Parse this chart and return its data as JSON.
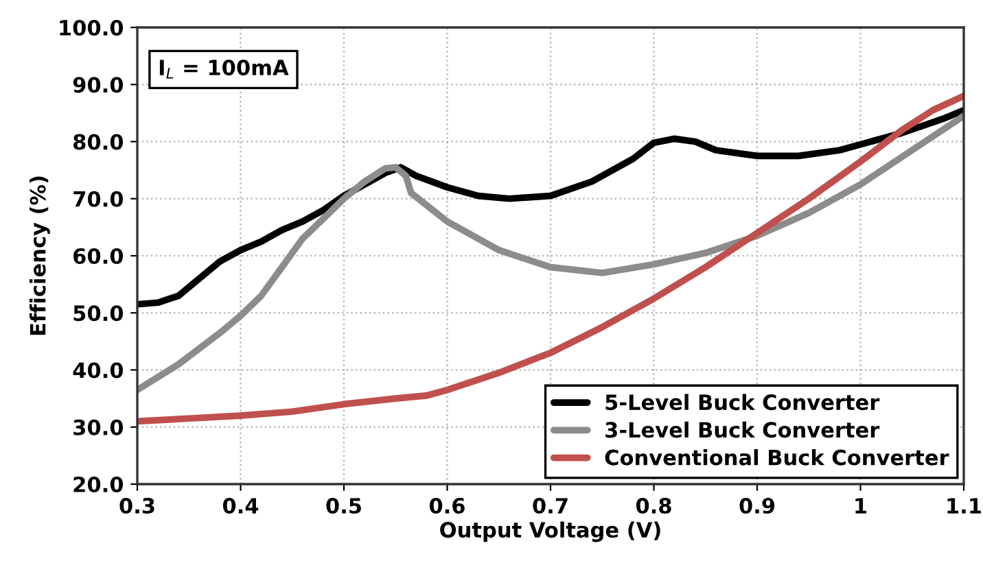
{
  "chart_data": {
    "type": "line",
    "xlabel": "Output Voltage (V)",
    "ylabel": "Efficiency (%)",
    "annotations": [
      "I$_{L}$ = 100mA"
    ],
    "xlim": [
      0.3,
      1.1
    ],
    "xticks": [
      0.3,
      0.4,
      0.5,
      0.6,
      0.7,
      0.8,
      0.9,
      1,
      1.1
    ],
    "ylim": [
      20,
      100
    ],
    "yticks": [
      {
        "value": 20,
        "label": "20.0"
      },
      {
        "value": 30,
        "label": "30.0"
      },
      {
        "value": 40,
        "label": "40.0"
      },
      {
        "value": 50,
        "label": "50.0"
      },
      {
        "value": 60,
        "label": "60.0"
      },
      {
        "value": 70,
        "label": "70.0"
      },
      {
        "value": 80,
        "label": "80.0"
      },
      {
        "value": 90,
        "label": "90.0"
      },
      {
        "value": 100,
        "label": "100.0"
      }
    ],
    "grid": true,
    "legend": "bottom right",
    "marker": "none",
    "line_style": "solid",
    "series": [
      {
        "name": "5-Level Buck Converter",
        "color": "#000000",
        "x": [
          0.3,
          0.32,
          0.34,
          0.36,
          0.38,
          0.4,
          0.42,
          0.44,
          0.46,
          0.48,
          0.5,
          0.52,
          0.54,
          0.555,
          0.57,
          0.6,
          0.63,
          0.66,
          0.7,
          0.74,
          0.78,
          0.8,
          0.82,
          0.84,
          0.86,
          0.9,
          0.94,
          0.98,
          1.0,
          1.04,
          1.08,
          1.1
        ],
        "values": [
          51.5,
          51.8,
          53,
          56,
          59,
          61,
          62.5,
          64.5,
          66,
          68,
          70.5,
          72.5,
          74.5,
          75.5,
          74,
          72,
          70.5,
          70,
          70.5,
          73,
          77,
          79.8,
          80.5,
          80,
          78.5,
          77.5,
          77.5,
          78.5,
          79.5,
          81.5,
          84,
          85.5
        ]
      },
      {
        "name": "3-Level Buck Converter",
        "color": "#8c8c8c",
        "x": [
          0.3,
          0.34,
          0.38,
          0.4,
          0.42,
          0.44,
          0.46,
          0.48,
          0.5,
          0.52,
          0.54,
          0.55,
          0.56,
          0.565,
          0.6,
          0.65,
          0.7,
          0.75,
          0.8,
          0.85,
          0.9,
          0.95,
          1.0,
          1.05,
          1.1
        ],
        "values": [
          36.5,
          41,
          46.5,
          49.5,
          53,
          58,
          63,
          66.5,
          70,
          73,
          75.3,
          75.5,
          74,
          71,
          66,
          61,
          58,
          57,
          58.5,
          60.5,
          63.5,
          67.5,
          72.5,
          78.5,
          84.5
        ]
      },
      {
        "name": "Conventional Buck Converter",
        "color": "#c0504d",
        "x": [
          0.3,
          0.35,
          0.4,
          0.45,
          0.5,
          0.55,
          0.58,
          0.6,
          0.65,
          0.7,
          0.75,
          0.8,
          0.85,
          0.9,
          0.95,
          1.0,
          1.04,
          1.07,
          1.1
        ],
        "values": [
          31,
          31.5,
          32,
          32.7,
          34,
          35,
          35.5,
          36.5,
          39.5,
          43,
          47.5,
          52.5,
          58,
          64,
          70,
          76.5,
          82,
          85.5,
          88
        ]
      }
    ]
  }
}
